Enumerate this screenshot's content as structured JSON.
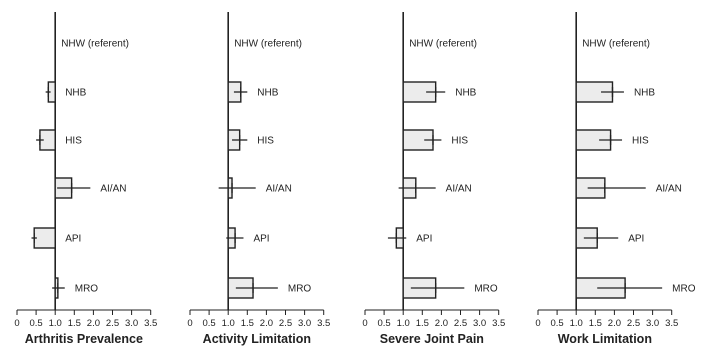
{
  "figure": {
    "colors": {
      "bar_fill": "#ececec",
      "ink": "#222222"
    }
  },
  "chart_data": [
    {
      "type": "bar",
      "orientation": "horizontal",
      "title": "Arthritis Prevalence",
      "xlim": [
        0,
        3.5
      ],
      "xticks": [
        "0",
        "0.5",
        "1.0",
        "1.5",
        "2.0",
        "2.5",
        "3.0",
        "3.5"
      ],
      "reference_value": 1.0,
      "categories": [
        "NHW (referent)",
        "NHB",
        "HIS",
        "AI/AN",
        "API",
        "MRO"
      ],
      "values": [
        1.0,
        0.82,
        0.6,
        1.43,
        0.45,
        1.07
      ],
      "ci_low": [
        1.0,
        0.75,
        0.5,
        1.05,
        0.38,
        0.92
      ],
      "ci_high": [
        1.0,
        0.88,
        0.7,
        1.92,
        0.52,
        1.25
      ]
    },
    {
      "type": "bar",
      "orientation": "horizontal",
      "title": "Activity Limitation",
      "xlim": [
        0,
        3.5
      ],
      "xticks": [
        "0",
        "0.5",
        "1.0",
        "1.5",
        "2.0",
        "2.5",
        "3.0",
        "3.5"
      ],
      "reference_value": 1.0,
      "categories": [
        "NHW (referent)",
        "NHB",
        "HIS",
        "AI/AN",
        "API",
        "MRO"
      ],
      "values": [
        1.0,
        1.33,
        1.3,
        1.1,
        1.18,
        1.65
      ],
      "ci_low": [
        1.0,
        1.15,
        1.1,
        0.75,
        0.95,
        1.2
      ],
      "ci_high": [
        1.0,
        1.5,
        1.5,
        1.72,
        1.4,
        2.3
      ]
    },
    {
      "type": "bar",
      "orientation": "horizontal",
      "title": "Severe Joint Pain",
      "xlim": [
        0,
        3.5
      ],
      "xticks": [
        "0",
        "0.5",
        "1.0",
        "1.5",
        "2.0",
        "2.5",
        "3.0",
        "3.5"
      ],
      "reference_value": 1.0,
      "categories": [
        "NHW (referent)",
        "NHB",
        "HIS",
        "AI/AN",
        "API",
        "MRO"
      ],
      "values": [
        1.0,
        1.85,
        1.78,
        1.33,
        0.82,
        1.85
      ],
      "ci_low": [
        1.0,
        1.6,
        1.55,
        0.88,
        0.6,
        1.2
      ],
      "ci_high": [
        1.0,
        2.1,
        2.0,
        1.85,
        1.08,
        2.6
      ]
    },
    {
      "type": "bar",
      "orientation": "horizontal",
      "title": "Work Limitation",
      "xlim": [
        0,
        3.5
      ],
      "xticks": [
        "0",
        "0.5",
        "1.0",
        "1.5",
        "2.0",
        "2.5",
        "3.0",
        "3.5"
      ],
      "reference_value": 1.0,
      "categories": [
        "NHW (referent)",
        "NHB",
        "HIS",
        "AI/AN",
        "API",
        "MRO"
      ],
      "values": [
        1.0,
        1.95,
        1.9,
        1.75,
        1.55,
        2.28
      ],
      "ci_low": [
        1.0,
        1.65,
        1.6,
        1.3,
        1.2,
        1.55
      ],
      "ci_high": [
        1.0,
        2.25,
        2.2,
        2.82,
        2.1,
        3.25
      ]
    }
  ]
}
